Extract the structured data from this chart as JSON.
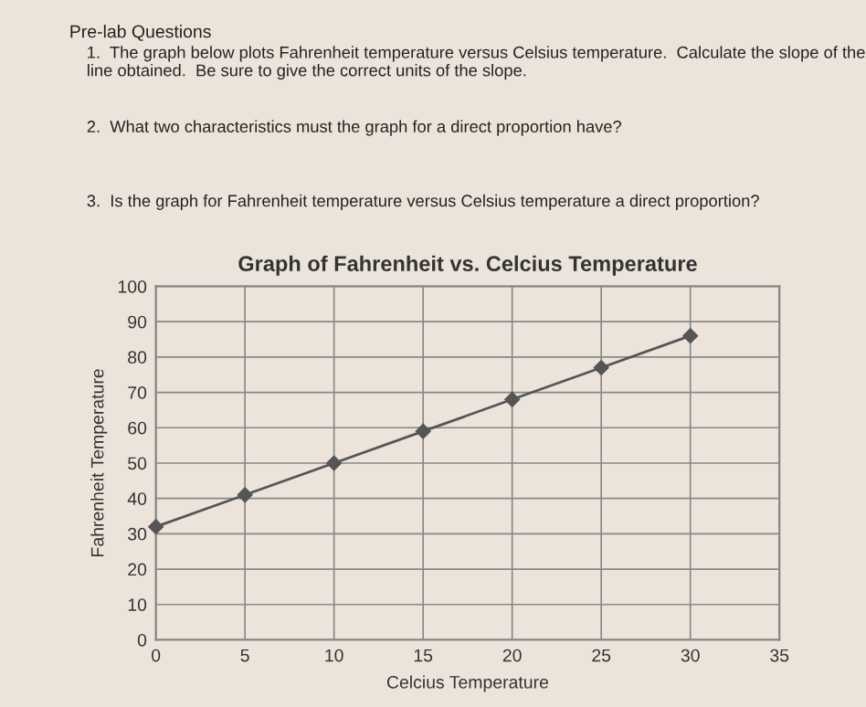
{
  "chart_data": {
    "type": "line",
    "title": "Graph of Fahrenheit vs. Celcius Temperature",
    "xlabel": "Celcius Temperature",
    "ylabel": "Fahrenheit Temperature",
    "x": [
      0,
      5,
      10,
      15,
      20,
      25,
      30
    ],
    "series": [
      {
        "color": "#555555",
        "values": [
          32,
          41,
          50,
          59,
          68,
          77,
          86
        ]
      }
    ],
    "xlim": [
      0,
      35
    ],
    "xticks": [
      0,
      5,
      10,
      15,
      20,
      25,
      30,
      35
    ],
    "ylim": [
      0,
      100
    ],
    "yticks": [
      0,
      10,
      20,
      30,
      40,
      50,
      60,
      70,
      80,
      90,
      100
    ],
    "grid": true,
    "marker": "diamond",
    "line_style": "solid",
    "legend": false,
    "annotations": [
      "Pre-lab Questions",
      "1.  The graph below plots Fahrenheit temperature versus Celsius temperature.  Calculate the slope of the line obtained.  Be sure to give the correct units of the slope.",
      "2.  What two characteristics must the graph for a direct proportion have?",
      "3.  Is the graph for Fahrenheit temperature versus Celsius temperature a direct proportion?"
    ]
  }
}
